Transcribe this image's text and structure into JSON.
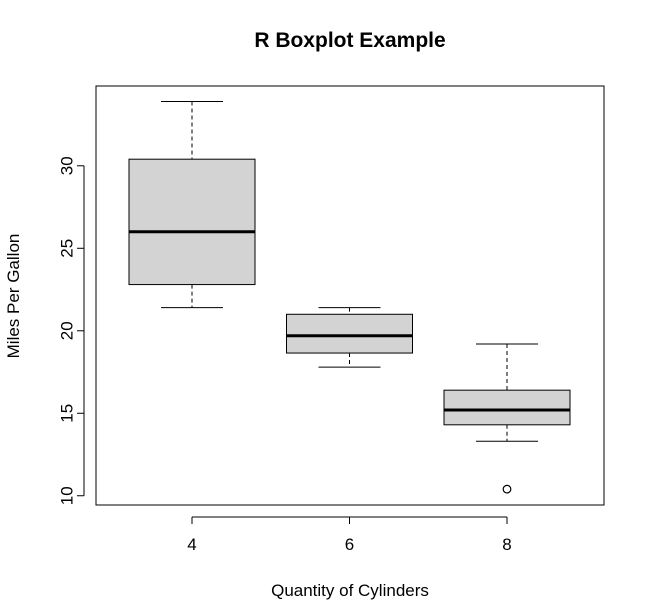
{
  "chart_data": {
    "type": "boxplot",
    "title": "R Boxplot Example",
    "xlabel": "Quantity of Cylinders",
    "ylabel": "Miles Per Gallon",
    "ylim": [
      9.5,
      35.0
    ],
    "yticks": [
      10,
      15,
      20,
      25,
      30
    ],
    "categories": [
      "4",
      "6",
      "8"
    ],
    "boxes": [
      {
        "category": "4",
        "whisker_low": 21.4,
        "q1": 22.8,
        "median": 26.0,
        "q3": 30.4,
        "whisker_high": 33.9,
        "outliers": []
      },
      {
        "category": "6",
        "whisker_low": 17.8,
        "q1": 18.65,
        "median": 19.7,
        "q3": 21.0,
        "whisker_high": 21.4,
        "outliers": []
      },
      {
        "category": "8",
        "whisker_low": 13.3,
        "q1": 14.3,
        "median": 15.2,
        "q3": 16.4,
        "whisker_high": 19.2,
        "outliers": [
          10.4
        ]
      }
    ],
    "colors": {
      "box_fill": "#d3d3d3",
      "line": "#000000"
    }
  }
}
